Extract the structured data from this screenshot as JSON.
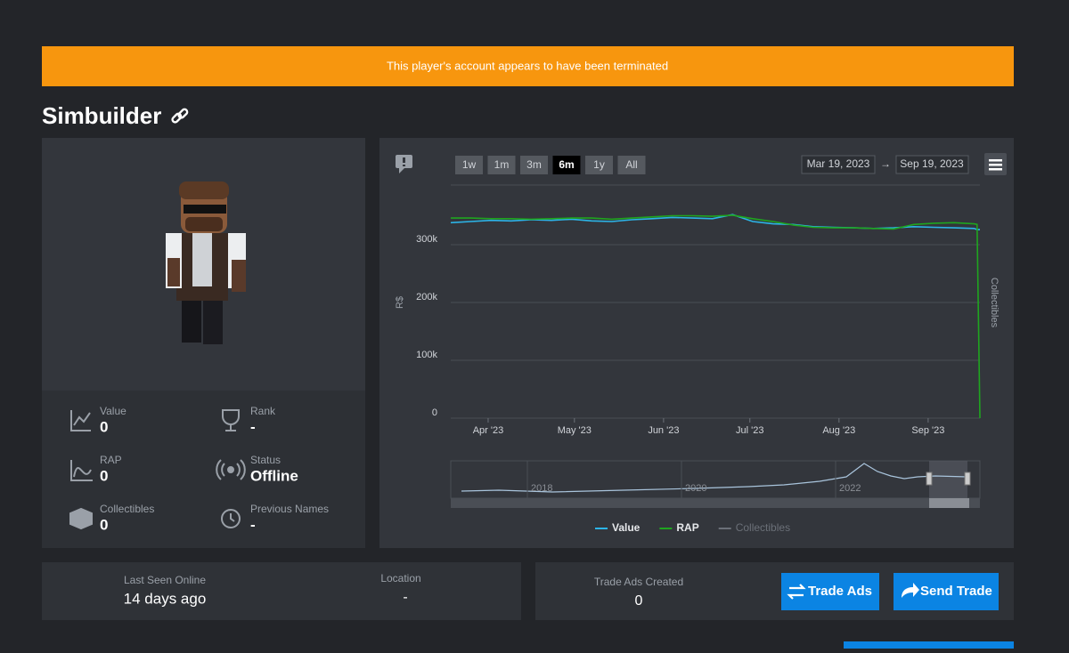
{
  "banner": "This player's account appears to have been terminated",
  "profile": {
    "username": "Simbuilder"
  },
  "stats": [
    {
      "label": "Value",
      "value": 0
    },
    {
      "label": "Rank",
      "value": "-"
    },
    {
      "label": "RAP",
      "value": 0
    },
    {
      "label": "Status",
      "value": "Offline"
    },
    {
      "label": "Collectibles",
      "value": 0
    },
    {
      "label": "Previous Names",
      "value": "-"
    }
  ],
  "chart_data": {
    "type": "line",
    "range_buttons": [
      "1w",
      "1m",
      "3m",
      "6m",
      "1y",
      "All"
    ],
    "selected_range": "6m",
    "date_from": "Mar 19, 2023",
    "arrow": "→",
    "date_to": "Sep 19, 2023",
    "y_label": "R$",
    "y2_label": "Collectibles",
    "x": [
      "2023-03-19",
      "2023-03-26",
      "2023-04-02",
      "2023-04-09",
      "2023-04-16",
      "2023-04-23",
      "2023-04-30",
      "2023-05-07",
      "2023-05-14",
      "2023-05-21",
      "2023-05-28",
      "2023-06-04",
      "2023-06-11",
      "2023-06-18",
      "2023-06-25",
      "2023-07-02",
      "2023-07-09",
      "2023-07-16",
      "2023-07-23",
      "2023-07-30",
      "2023-08-06",
      "2023-08-13",
      "2023-08-20",
      "2023-08-27",
      "2023-09-03",
      "2023-09-10",
      "2023-09-17",
      "2023-09-18",
      "2023-09-19"
    ],
    "xlim": [
      "2023-03-19",
      "2023-09-19"
    ],
    "xticks": [
      {
        "value": "2023-04-01",
        "label": "Apr '23"
      },
      {
        "value": "2023-05-01",
        "label": "May '23"
      },
      {
        "value": "2023-06-01",
        "label": "Jun '23"
      },
      {
        "value": "2023-07-01",
        "label": "Jul '23"
      },
      {
        "value": "2023-08-01",
        "label": "Aug '23"
      },
      {
        "value": "2023-09-01",
        "label": "Sep '23"
      }
    ],
    "ylim": [
      0,
      400000
    ],
    "yticks": [
      0,
      {
        "value": 100000,
        "label": "100k"
      },
      {
        "value": 200000,
        "label": "200k"
      },
      {
        "value": 300000,
        "label": "300k"
      }
    ],
    "series": [
      {
        "name": "Value",
        "color": "#2cb5e8",
        "values": [
          338000,
          340000,
          342000,
          341000,
          343000,
          342000,
          344000,
          341000,
          340000,
          343000,
          345000,
          347000,
          346000,
          345000,
          352000,
          340000,
          336000,
          335000,
          331000,
          330000,
          329000,
          328000,
          329000,
          331000,
          330000,
          329000,
          328000,
          326000,
          326000
        ]
      },
      {
        "name": "RAP",
        "color": "#1fa51f",
        "values": [
          346000,
          346000,
          345000,
          345000,
          344000,
          345000,
          346000,
          346000,
          344000,
          346000,
          348000,
          350000,
          350000,
          349000,
          351000,
          345000,
          340000,
          334000,
          330000,
          329000,
          329000,
          328000,
          327000,
          335000,
          337000,
          338000,
          336000,
          335000,
          0
        ]
      }
    ],
    "hidden_series": {
      "name": "Collectibles",
      "color": "#6b7078"
    },
    "navigator_labels": [
      "2018",
      "2020",
      "2022"
    ]
  },
  "activity": {
    "last_seen_label": "Last Seen Online",
    "last_seen": "14 days ago",
    "location_label": "Location",
    "location": "-"
  },
  "trading": {
    "trade_ads_label": "Trade Ads Created",
    "trade_ads": 0,
    "buttons": [
      "Trade Ads",
      "Send Trade"
    ]
  }
}
